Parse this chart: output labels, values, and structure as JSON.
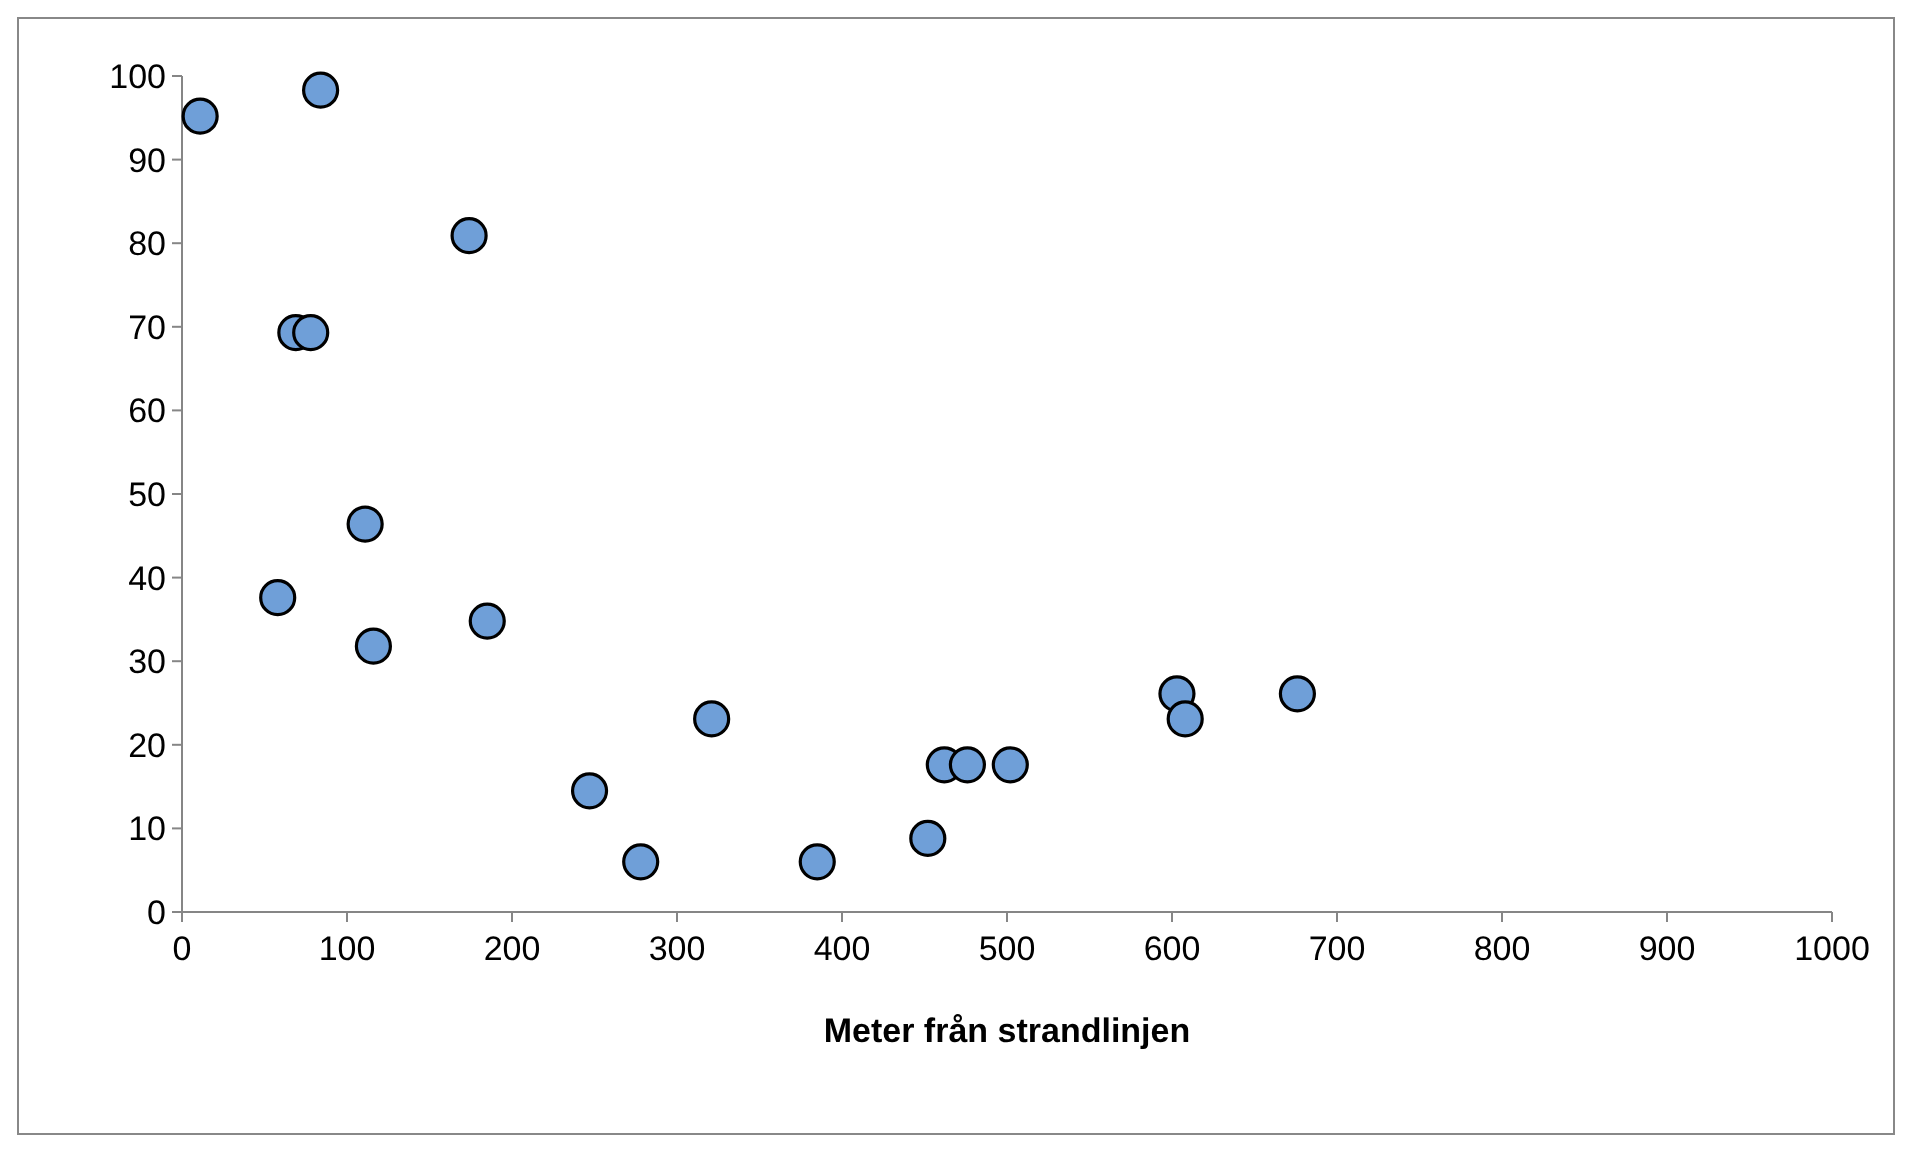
{
  "chart_data": {
    "type": "scatter",
    "xlabel": "Meter från strandlinjen",
    "x": [
      11,
      84,
      174,
      69,
      78,
      111,
      58,
      116,
      185,
      247,
      278,
      321,
      385,
      452,
      462,
      476,
      502,
      603,
      608,
      676
    ],
    "values": [
      95.2,
      98.3,
      80.9,
      69.3,
      69.3,
      46.4,
      37.6,
      31.8,
      34.8,
      14.5,
      6,
      23.1,
      6,
      8.8,
      17.6,
      17.6,
      17.6,
      26.1,
      23.1,
      26.1
    ],
    "color": "#6f9fd8",
    "marker": "circle",
    "xlim": [
      0,
      1000
    ],
    "xticks": [
      0,
      100,
      200,
      300,
      400,
      500,
      600,
      700,
      800,
      900,
      1000
    ],
    "ylim": [
      0,
      100
    ],
    "yticks": [
      0,
      10,
      20,
      30,
      40,
      50,
      60,
      70,
      80,
      90,
      100
    ],
    "grid": false
  }
}
